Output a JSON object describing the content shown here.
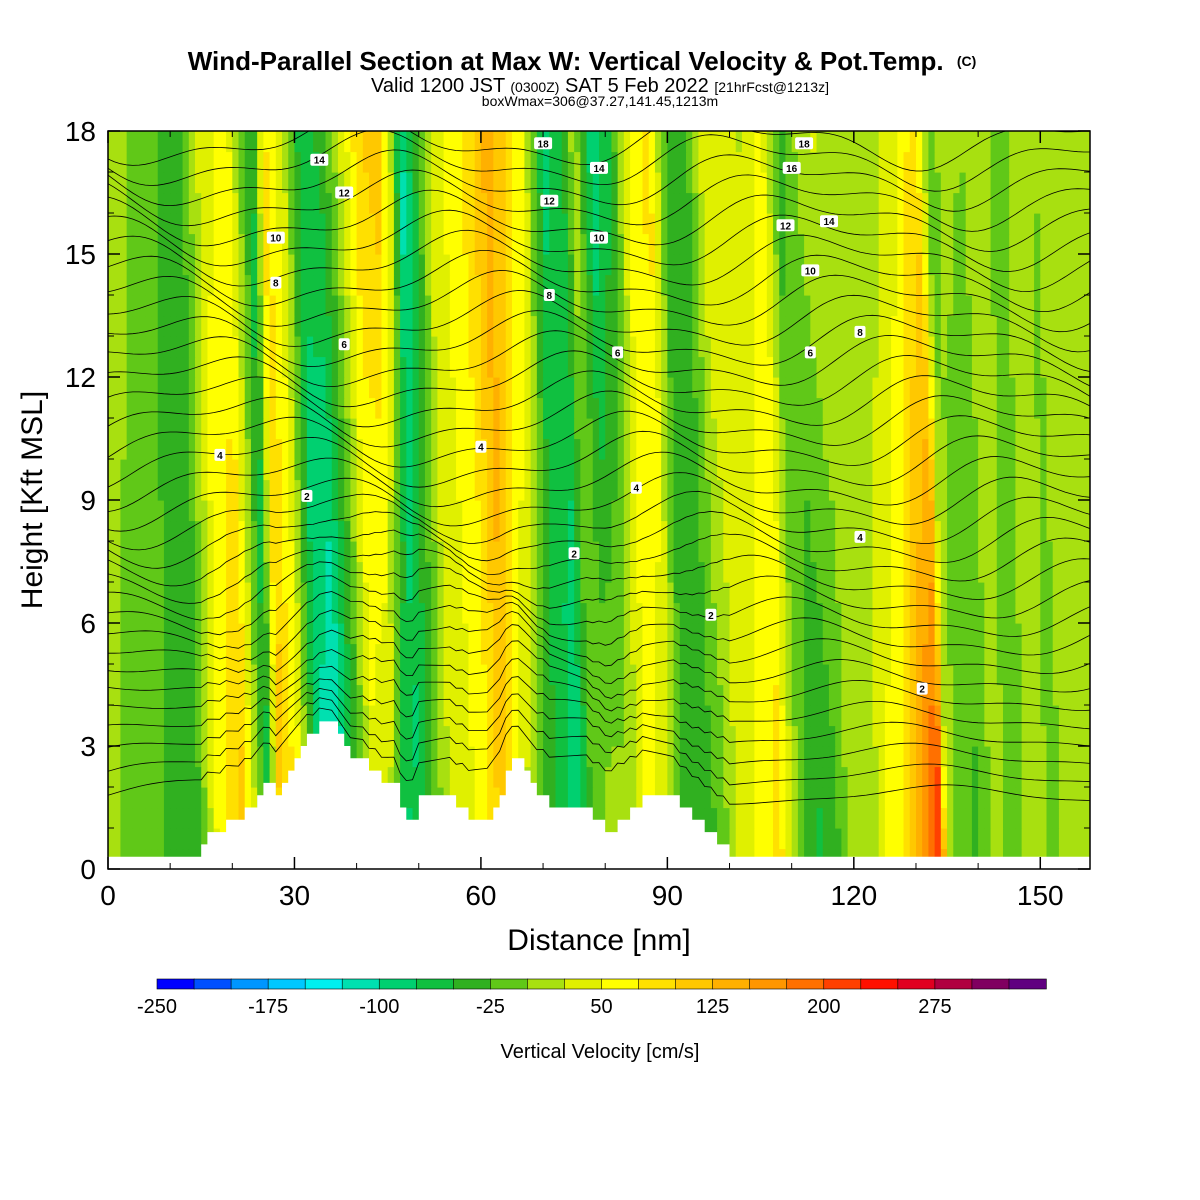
{
  "chart_data": {
    "type": "heatmap",
    "title": "Wind-Parallel Section at Max W: Vertical Velocity & Pot.Temp.",
    "title_mark": "(C)",
    "subtitle_main_a": "Valid 1200 JST",
    "subtitle_small_a": "(0300Z)",
    "subtitle_main_b": "SAT 5 Feb 2022",
    "subtitle_small_b": "[21hrFcst@1213z]",
    "subtitle2": "boxWmax=306@37.27,141.45,1213m",
    "xlabel": "Distance [nm]",
    "ylabel": "Height [Kft MSL]",
    "xlim": [
      0,
      158
    ],
    "ylim": [
      0,
      18
    ],
    "x_ticks": [
      0,
      30,
      60,
      90,
      120,
      150
    ],
    "y_ticks": [
      0,
      3,
      6,
      9,
      12,
      15,
      18
    ],
    "x_tick_labels": [
      "0",
      "30",
      "60",
      "90",
      "120",
      "150"
    ],
    "y_tick_labels": [
      "0",
      "3",
      "6",
      "9",
      "12",
      "15",
      "18"
    ],
    "colorbar": {
      "label": "Vertical Velocity [cm/s]",
      "min": -250,
      "max": 325,
      "step": 25,
      "tick_labels": [
        "-250",
        "-175",
        "-100",
        "-25",
        "50",
        "125",
        "200",
        "275"
      ],
      "tick_values": [
        -250,
        -175,
        -100,
        -25,
        50,
        125,
        200,
        275
      ],
      "colors": [
        "#0000ff",
        "#0050ff",
        "#0096ff",
        "#00c8ff",
        "#00f0f0",
        "#00e0b0",
        "#00d070",
        "#10c040",
        "#30b020",
        "#60c818",
        "#a8e010",
        "#e0f000",
        "#ffff00",
        "#ffe000",
        "#ffc800",
        "#ffb000",
        "#ff9600",
        "#ff7000",
        "#ff4000",
        "#ff1000",
        "#e00020",
        "#b00040",
        "#800060",
        "#600080"
      ]
    },
    "w_columns": {
      "x": [
        0,
        5,
        10,
        14,
        18,
        22,
        26,
        28,
        31,
        34,
        37,
        40,
        43,
        46,
        48,
        50,
        52,
        55,
        58,
        61,
        64,
        67,
        70,
        73,
        76,
        78,
        81,
        84,
        87,
        90,
        93,
        96,
        99,
        102,
        105,
        108,
        111,
        114,
        117,
        120,
        123,
        126,
        129,
        131,
        133,
        134,
        135,
        137,
        140,
        143,
        146,
        149,
        152,
        155,
        158
      ],
      "w_upper": [
        10,
        5,
        -20,
        -45,
        40,
        60,
        -60,
        80,
        30,
        -70,
        -40,
        20,
        90,
        120,
        60,
        -110,
        -60,
        40,
        60,
        90,
        140,
        110,
        40,
        -80,
        -50,
        20,
        -110,
        -40,
        60,
        90,
        -50,
        -30,
        50,
        40,
        20,
        60,
        -40,
        10,
        30,
        0,
        20,
        10,
        40,
        70,
        80,
        20,
        -20,
        10,
        0,
        20,
        -10,
        10,
        0,
        20,
        10
      ],
      "w_lower": [
        5,
        -10,
        -30,
        -50,
        60,
        110,
        -70,
        120,
        60,
        -90,
        -150,
        -60,
        40,
        10,
        -90,
        -70,
        -30,
        20,
        40,
        60,
        120,
        30,
        -20,
        -60,
        -100,
        -30,
        20,
        10,
        60,
        20,
        -30,
        -40,
        -20,
        40,
        60,
        90,
        10,
        -60,
        -40,
        20,
        10,
        60,
        90,
        140,
        200,
        230,
        40,
        -20,
        -30,
        10,
        -20,
        20,
        -10,
        10,
        5
      ]
    },
    "terrain_x": [
      0,
      15,
      16,
      17,
      18,
      19,
      20,
      21,
      22,
      23,
      24,
      25,
      26,
      27,
      28,
      29,
      30,
      31,
      32,
      33,
      34,
      35,
      36,
      37,
      38,
      39,
      40,
      41,
      42,
      43,
      44,
      45,
      46,
      47,
      48,
      49,
      50,
      51,
      52,
      53,
      54,
      55,
      56,
      57,
      58,
      59,
      60,
      61,
      62,
      63,
      64,
      65,
      66,
      67,
      68,
      69,
      70,
      71,
      72,
      73,
      74,
      75,
      76,
      77,
      78,
      79,
      80,
      81,
      82,
      83,
      84,
      85,
      86,
      87,
      88,
      89,
      90,
      91,
      92,
      93,
      94,
      95,
      96,
      97,
      98,
      99,
      100,
      101,
      158
    ],
    "terrain_h": [
      0.3,
      0.6,
      0.9,
      0.9,
      0.9,
      1.2,
      1.2,
      1.2,
      1.5,
      1.5,
      1.8,
      2.1,
      2.1,
      1.8,
      2.1,
      2.4,
      2.7,
      3.0,
      3.3,
      3.3,
      3.6,
      3.6,
      3.6,
      3.3,
      3.0,
      2.7,
      2.7,
      2.7,
      2.4,
      2.4,
      2.1,
      2.1,
      2.1,
      1.5,
      1.2,
      1.2,
      1.8,
      1.8,
      1.8,
      1.8,
      1.8,
      1.8,
      1.5,
      1.5,
      1.2,
      1.2,
      1.2,
      1.2,
      1.5,
      1.8,
      2.4,
      2.7,
      2.7,
      2.4,
      2.1,
      1.8,
      1.8,
      1.5,
      1.5,
      1.5,
      1.5,
      1.5,
      1.5,
      1.5,
      1.2,
      1.2,
      0.9,
      0.9,
      1.2,
      1.2,
      1.5,
      1.5,
      1.8,
      1.8,
      1.8,
      1.8,
      1.8,
      1.8,
      1.5,
      1.5,
      1.2,
      1.2,
      0.9,
      0.9,
      0.6,
      0.6,
      0.3,
      0.3,
      0.3
    ],
    "theta_contours": {
      "levels": [
        2,
        4,
        6,
        8,
        10,
        12,
        14,
        16,
        18
      ],
      "labels": [
        {
          "text": "2",
          "x": 32,
          "y": 9.1
        },
        {
          "text": "2",
          "x": 75,
          "y": 7.7
        },
        {
          "text": "2",
          "x": 97,
          "y": 6.2
        },
        {
          "text": "2",
          "x": 131,
          "y": 4.4
        },
        {
          "text": "4",
          "x": 18,
          "y": 10.1
        },
        {
          "text": "4",
          "x": 60,
          "y": 10.3
        },
        {
          "text": "4",
          "x": 85,
          "y": 9.3
        },
        {
          "text": "4",
          "x": 121,
          "y": 8.1
        },
        {
          "text": "6",
          "x": 38,
          "y": 12.8
        },
        {
          "text": "6",
          "x": 82,
          "y": 12.6
        },
        {
          "text": "6",
          "x": 113,
          "y": 12.6
        },
        {
          "text": "8",
          "x": 27,
          "y": 14.3
        },
        {
          "text": "8",
          "x": 71,
          "y": 14.0
        },
        {
          "text": "8",
          "x": 121,
          "y": 13.1
        },
        {
          "text": "10",
          "x": 27,
          "y": 15.4
        },
        {
          "text": "10",
          "x": 79,
          "y": 15.4
        },
        {
          "text": "10",
          "x": 113,
          "y": 14.6
        },
        {
          "text": "12",
          "x": 38,
          "y": 16.5
        },
        {
          "text": "12",
          "x": 71,
          "y": 16.3
        },
        {
          "text": "12",
          "x": 109,
          "y": 15.7
        },
        {
          "text": "14",
          "x": 34,
          "y": 17.3
        },
        {
          "text": "14",
          "x": 79,
          "y": 17.1
        },
        {
          "text": "14",
          "x": 116,
          "y": 15.8
        },
        {
          "text": "16",
          "x": 110,
          "y": 17.1
        },
        {
          "text": "18",
          "x": 70,
          "y": 17.7
        },
        {
          "text": "18",
          "x": 112,
          "y": 17.7
        }
      ]
    }
  }
}
